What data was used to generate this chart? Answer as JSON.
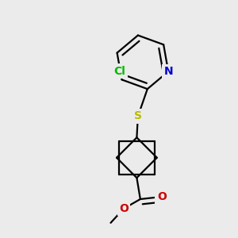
{
  "background_color": "#ebebeb",
  "atom_colors": {
    "C": "#000000",
    "N": "#0000cc",
    "O": "#cc0000",
    "S": "#bbbb00",
    "Cl": "#00bb00"
  },
  "bond_color": "#000000",
  "bond_width": 1.6,
  "figsize": [
    3.0,
    3.0
  ],
  "dpi": 100,
  "xlim": [
    0.0,
    1.0
  ],
  "ylim": [
    0.0,
    1.0
  ]
}
